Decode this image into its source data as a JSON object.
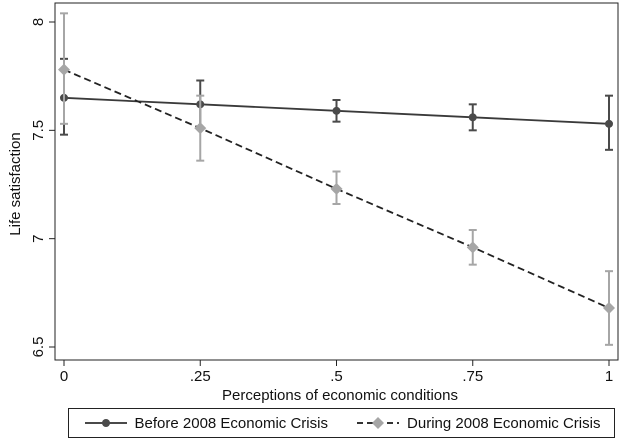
{
  "chart_data": {
    "type": "line",
    "title": "",
    "xlabel": "Perceptions of economic conditions",
    "ylabel": "Life satisfaction",
    "xlim": [
      0,
      1
    ],
    "ylim": [
      6.5,
      8
    ],
    "x_ticks": [
      0,
      0.25,
      0.5,
      0.75,
      1
    ],
    "x_tick_labels": [
      "0",
      ".25",
      ".5",
      ".75",
      "1"
    ],
    "y_ticks": [
      6.5,
      7,
      7.5,
      8
    ],
    "y_tick_labels": [
      "6.5",
      "7",
      "7.5",
      "8"
    ],
    "grid": false,
    "legend_position": "bottom",
    "x": [
      0,
      0.25,
      0.5,
      0.75,
      1
    ],
    "series": [
      {
        "name": "Before 2008 Economic Crisis",
        "values": [
          7.65,
          7.62,
          7.59,
          7.56,
          7.53
        ],
        "ci_low": [
          7.48,
          7.51,
          7.54,
          7.5,
          7.41
        ],
        "ci_high": [
          7.83,
          7.73,
          7.64,
          7.62,
          7.66
        ],
        "line_style": "solid",
        "marker": "circle",
        "color": "#4a4a4a"
      },
      {
        "name": "During 2008 Economic Crisis",
        "values": [
          7.78,
          7.51,
          7.23,
          6.96,
          6.68
        ],
        "ci_low": [
          7.53,
          7.36,
          7.16,
          6.88,
          6.51
        ],
        "ci_high": [
          8.04,
          7.66,
          7.31,
          7.04,
          6.85
        ],
        "line_style": "dashed",
        "marker": "diamond",
        "color": "#a6a6a6"
      }
    ]
  }
}
